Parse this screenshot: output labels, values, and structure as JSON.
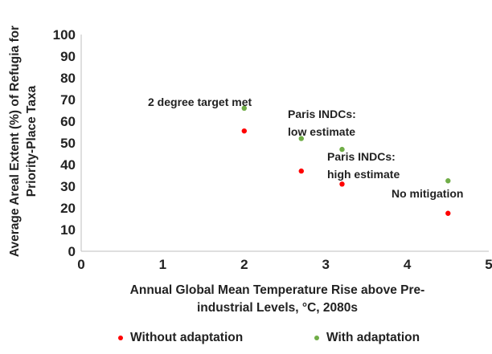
{
  "chart_data": {
    "type": "scatter",
    "ylabel_lines": [
      "Average Areal Extent (%) of Refugia for",
      "Priority-Place Taxa"
    ],
    "xlabel_lines": [
      "Annual Global Mean Temperature Rise above Pre-",
      "industrial Levels, °C, 2080s"
    ],
    "xlim": [
      0,
      5
    ],
    "ylim": [
      0,
      100
    ],
    "xticks": [
      "0",
      "1",
      "2",
      "3",
      "4",
      "5"
    ],
    "yticks": [
      "0",
      "10",
      "20",
      "30",
      "40",
      "50",
      "60",
      "70",
      "80",
      "90",
      "100"
    ],
    "grid": false,
    "legend_position": "bottom",
    "series": [
      {
        "name": "Without adaptation",
        "color": "#ff0000",
        "points": [
          [
            2.0,
            55.5
          ],
          [
            2.7,
            37.0
          ],
          [
            3.2,
            31.0
          ],
          [
            4.5,
            17.5
          ]
        ]
      },
      {
        "name": "With adaptation",
        "color": "#70ad47",
        "points": [
          [
            2.0,
            66.0
          ],
          [
            2.7,
            52.0
          ],
          [
            3.2,
            47.0
          ],
          [
            4.5,
            32.5
          ]
        ]
      }
    ],
    "annotations": [
      {
        "text": "2 degree target met",
        "x": 2.0
      },
      {
        "text": "Paris INDCs:\nlow estimate",
        "x": 2.7
      },
      {
        "text": "Paris INDCs:\nhigh estimate",
        "x": 3.2
      },
      {
        "text": "No mitigation",
        "x": 4.5
      }
    ]
  }
}
